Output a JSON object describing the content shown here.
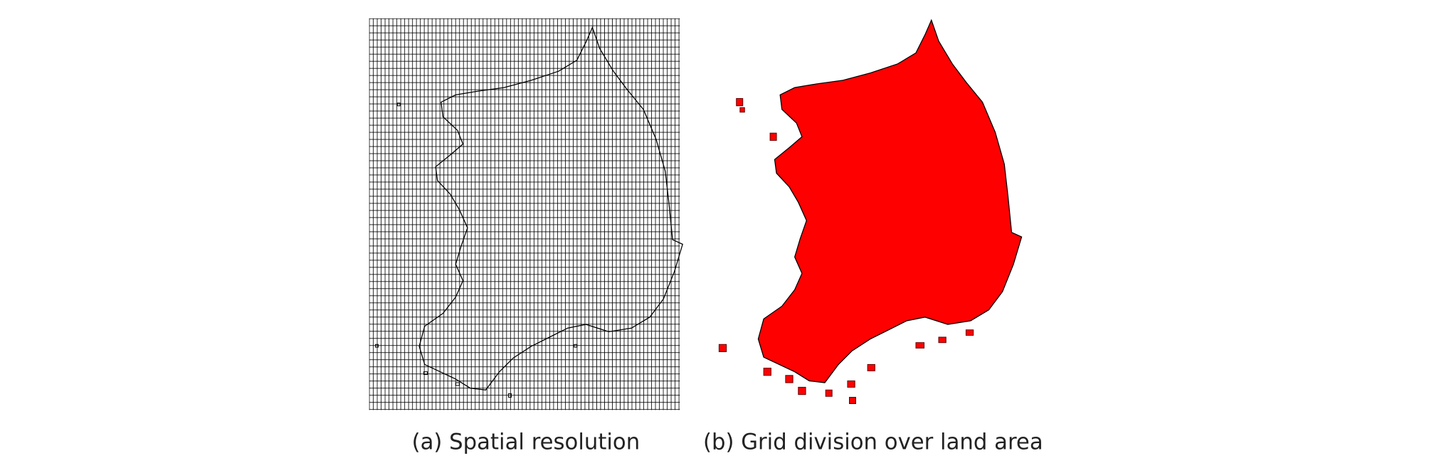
{
  "panels": [
    {
      "caption": "(a) Spatial resolution"
    },
    {
      "caption": "(b) Grid division over land area"
    }
  ]
}
